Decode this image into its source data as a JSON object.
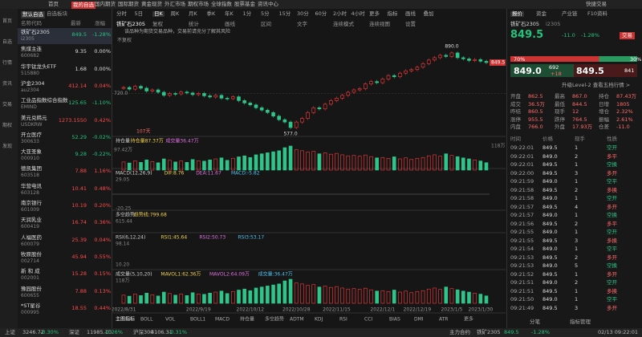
{
  "top_tabs": [
    "首页",
    "我的自选",
    "国内期货",
    "国际期货",
    "黄金现货",
    "外汇市场",
    "期权市场",
    "全球指数",
    "股票基金",
    "资讯中心"
  ],
  "quick_trade": "快捷交易",
  "sidebar": [
    "首页",
    "自选",
    "行情",
    "资讯",
    "交易",
    "期权",
    "发现"
  ],
  "watchlist": {
    "tabs": [
      "默认自选",
      "自选板块"
    ],
    "headers": [
      "名称代码",
      "最新",
      "涨幅"
    ],
    "rows": [
      [
        "铁矿石2305",
        "i2305",
        "849.5",
        "-1.28%"
      ],
      [
        "焦煤主连",
        "600682",
        "9.35",
        "0.00%"
      ],
      [
        "华宇钛龙头ETF",
        "515880",
        "1.68",
        "0.00%"
      ],
      [
        "沪金2304",
        "au2304",
        "412.14",
        "0.04%"
      ],
      [
        "工业品指数综合指数",
        "EMIND",
        "125.65",
        "-1.10%"
      ],
      [
        "美元兑韩元",
        "USDKRW",
        "1273.1550",
        "0.42%"
      ],
      [
        "开立医疗",
        "300633",
        "52.29",
        "-0.02%"
      ],
      [
        "大亚圣象",
        "000910",
        "9.28",
        "-0.22%"
      ],
      [
        "德凯集团",
        "603518",
        "7.88",
        "1.16%"
      ],
      [
        "华营电讯",
        "603128",
        "10.41",
        "0.48%"
      ],
      [
        "南京银行",
        "601009",
        "10.19",
        "0.20%"
      ],
      [
        "天润乳业",
        "600419",
        "16.74",
        "0.36%"
      ],
      [
        "人福医药",
        "600079",
        "25.39",
        "0.04%"
      ],
      [
        "牧原股份",
        "002714",
        "45.94",
        "0.55%"
      ],
      [
        "新 和 成",
        "002001",
        "15.28",
        "0.15%"
      ],
      [
        "豫园股份",
        "600655",
        "7.88",
        "0.13%"
      ],
      [
        "*ST星谷",
        "000995",
        "18.55",
        "0.44%"
      ]
    ]
  },
  "periods": [
    "分时",
    "5日",
    "日K",
    "周K",
    "月K",
    "季K",
    "年K",
    "1分",
    "5分",
    "15分",
    "30分",
    "60分",
    "2小时",
    "4小时",
    "更多",
    "指标",
    "画线",
    "叠加"
  ],
  "chart_toolbar": [
    "铁矿石2305",
    "复权",
    "统计",
    "画线",
    "区间",
    "文字",
    "连续模式",
    "连续视图",
    "设置"
  ],
  "notice": "该品种为期货交易品种，交易前请充分了解其风险",
  "adjust_label": "不复权",
  "chart_data": {
    "type": "candlestick",
    "title": "铁矿石2305",
    "categories": [
      "2022/8/31",
      null,
      null,
      null,
      null,
      null,
      null,
      null,
      null,
      null,
      null,
      null,
      null,
      "2022/9/19",
      null,
      null,
      null,
      null,
      null,
      null,
      null,
      null,
      "2022/10/12",
      null,
      null,
      null,
      null,
      null,
      null,
      null,
      "2022/10/28",
      null,
      null,
      null,
      null,
      null,
      null,
      "2022/11/15",
      null,
      null,
      null,
      null,
      null,
      null,
      null,
      "2022/12/1",
      null,
      null,
      null,
      null,
      null,
      "2022/12/19",
      null,
      null,
      null,
      null,
      null,
      "2023/1/5",
      null,
      null,
      null,
      null,
      "2023/1/30",
      null
    ],
    "close": [
      745,
      738,
      750,
      742,
      730,
      735,
      725,
      712,
      720,
      718,
      726,
      722,
      715,
      720,
      710,
      705,
      712,
      700,
      698,
      706,
      690,
      680,
      672,
      660,
      650,
      640,
      625,
      610,
      600,
      577,
      600,
      615,
      640,
      660,
      655,
      675,
      690,
      700,
      712,
      725,
      735,
      740,
      760,
      770,
      765,
      780,
      795,
      790,
      805,
      815,
      820,
      830,
      845,
      860,
      870,
      880,
      875,
      890,
      870,
      865,
      858,
      862,
      855,
      849.5
    ],
    "volume": [
      40,
      35,
      45,
      38,
      50,
      42,
      36,
      55,
      48,
      40,
      45,
      38,
      52,
      46,
      44,
      50,
      55,
      60,
      48,
      58,
      65,
      70,
      62,
      75,
      80,
      85,
      90,
      95,
      110,
      118,
      100,
      95,
      88,
      92,
      80,
      85,
      78,
      82,
      75,
      70,
      72,
      68,
      74,
      66,
      60,
      62,
      58,
      65,
      55,
      60,
      52,
      58,
      62,
      70,
      75,
      68,
      80,
      72,
      66,
      60,
      55,
      50,
      45,
      36.47
    ],
    "ylim": [
      560,
      910
    ],
    "yticks": [
      {
        "value": 720,
        "label": "720.0"
      }
    ],
    "high": {
      "value": 890,
      "label": "890.0"
    },
    "low": {
      "value": 577,
      "label": "577.0"
    },
    "days_label": "107天",
    "vol_ylim": [
      0,
      118
    ],
    "vol_ticks": [
      {
        "value": 97.42,
        "label": "97.42万"
      },
      {
        "value": 118,
        "label": "118万"
      }
    ],
    "up_color": "#ff3b3b",
    "down_color": "#2fc58a"
  },
  "panels": [
    {
      "labels": [
        "持仓量",
        "持仓量87.37万",
        "成交量36.47万"
      ]
    },
    {
      "labels": [
        "MACD(12,26,9)",
        "DIF:8.76",
        "DEA:11.67",
        "MACD:-5.82"
      ],
      "axis": [
        "29.05",
        "-20.25"
      ]
    },
    {
      "labels": [
        "多空趋势",
        "趋势线:799.68"
      ],
      "axis": [
        "615.44"
      ]
    },
    {
      "labels": [
        "RSI(6,12,24)",
        "RSI1:45.64",
        "RSI2:50.73",
        "RSI3:53.17"
      ],
      "axis": [
        "98.14",
        "10.20"
      ]
    },
    {
      "labels": [
        "成交量(5,10,20)",
        "MAVOL1:62.36万",
        "MAVOL2:64.09万",
        "成交量:36.47万"
      ],
      "axis": [
        "118万"
      ]
    }
  ],
  "indicator_tabs": [
    "主图指标",
    "BOLL",
    "VOL",
    "BOLL1",
    "MACD",
    "持仓量",
    "多空趋势",
    "ADTM",
    "KDJ",
    "RSI",
    "CCI",
    "BIAS",
    "DMI",
    "ATR",
    "更多"
  ],
  "quote": {
    "tabs": [
      "报价",
      "资金",
      "产业链",
      "F10资料"
    ],
    "name": "铁矿石2305",
    "code": "i2305",
    "price": "849.5",
    "change": "-11.0",
    "pct": "-1.28%",
    "trade": "交易",
    "buy_pct": "70%",
    "sell_pct": "30%",
    "bid": "849.0",
    "bid_vol": "692",
    "bid_chg": "+18",
    "ask": "849.5",
    "ask_vol": "841",
    "level2": "升级Level-2 查看五档行情 >",
    "stats": [
      [
        "开盘",
        "862.5",
        "最高",
        "867.0",
        "持仓",
        "87.43万"
      ],
      [
        "成交",
        "36.5万",
        "最低",
        "844.5",
        "日增",
        "1805"
      ],
      [
        "昨结",
        "860.5",
        "现手",
        "12",
        "增仓",
        "2.32%"
      ],
      [
        "涨停",
        "955.5",
        "跌停",
        "764.5",
        "振幅",
        "2.61%"
      ],
      [
        "内盘",
        "766.0",
        "外盘",
        "17.93万",
        "仓差",
        "-11.0"
      ]
    ],
    "ticks_headers": [
      "时间",
      "价格",
      "现手",
      "性质"
    ],
    "ticks": [
      [
        "09:22:01",
        "849.5",
        "1",
        "空开"
      ],
      [
        "09:22:01",
        "849.0",
        "2",
        "多平"
      ],
      [
        "09:22:01",
        "849.5",
        "1",
        "空换"
      ],
      [
        "09:22:00",
        "849.5",
        "3",
        "多开"
      ],
      [
        "09:21:59",
        "849.0",
        "1",
        "空平"
      ],
      [
        "09:21:58",
        "849.5",
        "2",
        "多换"
      ],
      [
        "09:21:58",
        "849.0",
        "1",
        "空开"
      ],
      [
        "09:21:57",
        "849.5",
        "4",
        "多开"
      ],
      [
        "09:21:57",
        "849.0",
        "1",
        "空换"
      ],
      [
        "09:21:56",
        "849.5",
        "2",
        "多平"
      ],
      [
        "09:21:55",
        "849.0",
        "1",
        "空开"
      ],
      [
        "09:21:55",
        "849.5",
        "3",
        "多换"
      ],
      [
        "09:21:54",
        "849.0",
        "1",
        "空平"
      ],
      [
        "09:21:53",
        "849.5",
        "2",
        "多开"
      ],
      [
        "09:21:53",
        "849.0",
        "5",
        "空换"
      ],
      [
        "09:21:52",
        "849.5",
        "1",
        "多开"
      ],
      [
        "09:21:51",
        "849.0",
        "2",
        "空开"
      ],
      [
        "09:21:51",
        "849.5",
        "1",
        "多换"
      ],
      [
        "09:21:50",
        "849.0",
        "1",
        "空平"
      ],
      [
        "09:21:49",
        "849.5",
        "3",
        "多开"
      ]
    ],
    "bottom_tabs": [
      "分笔",
      "指标管理"
    ]
  },
  "status": {
    "items": [
      [
        "上证",
        "3246.72",
        "-0.30%"
      ],
      [
        "深证",
        "11985.10",
        "-0.26%"
      ],
      [
        "沪深300",
        "4106.31",
        "-0.31%"
      ]
    ],
    "right": [
      "主力合约",
      "铁矿2305",
      "849.5",
      "-1.28%"
    ],
    "time": "02/13 09:22:01"
  }
}
